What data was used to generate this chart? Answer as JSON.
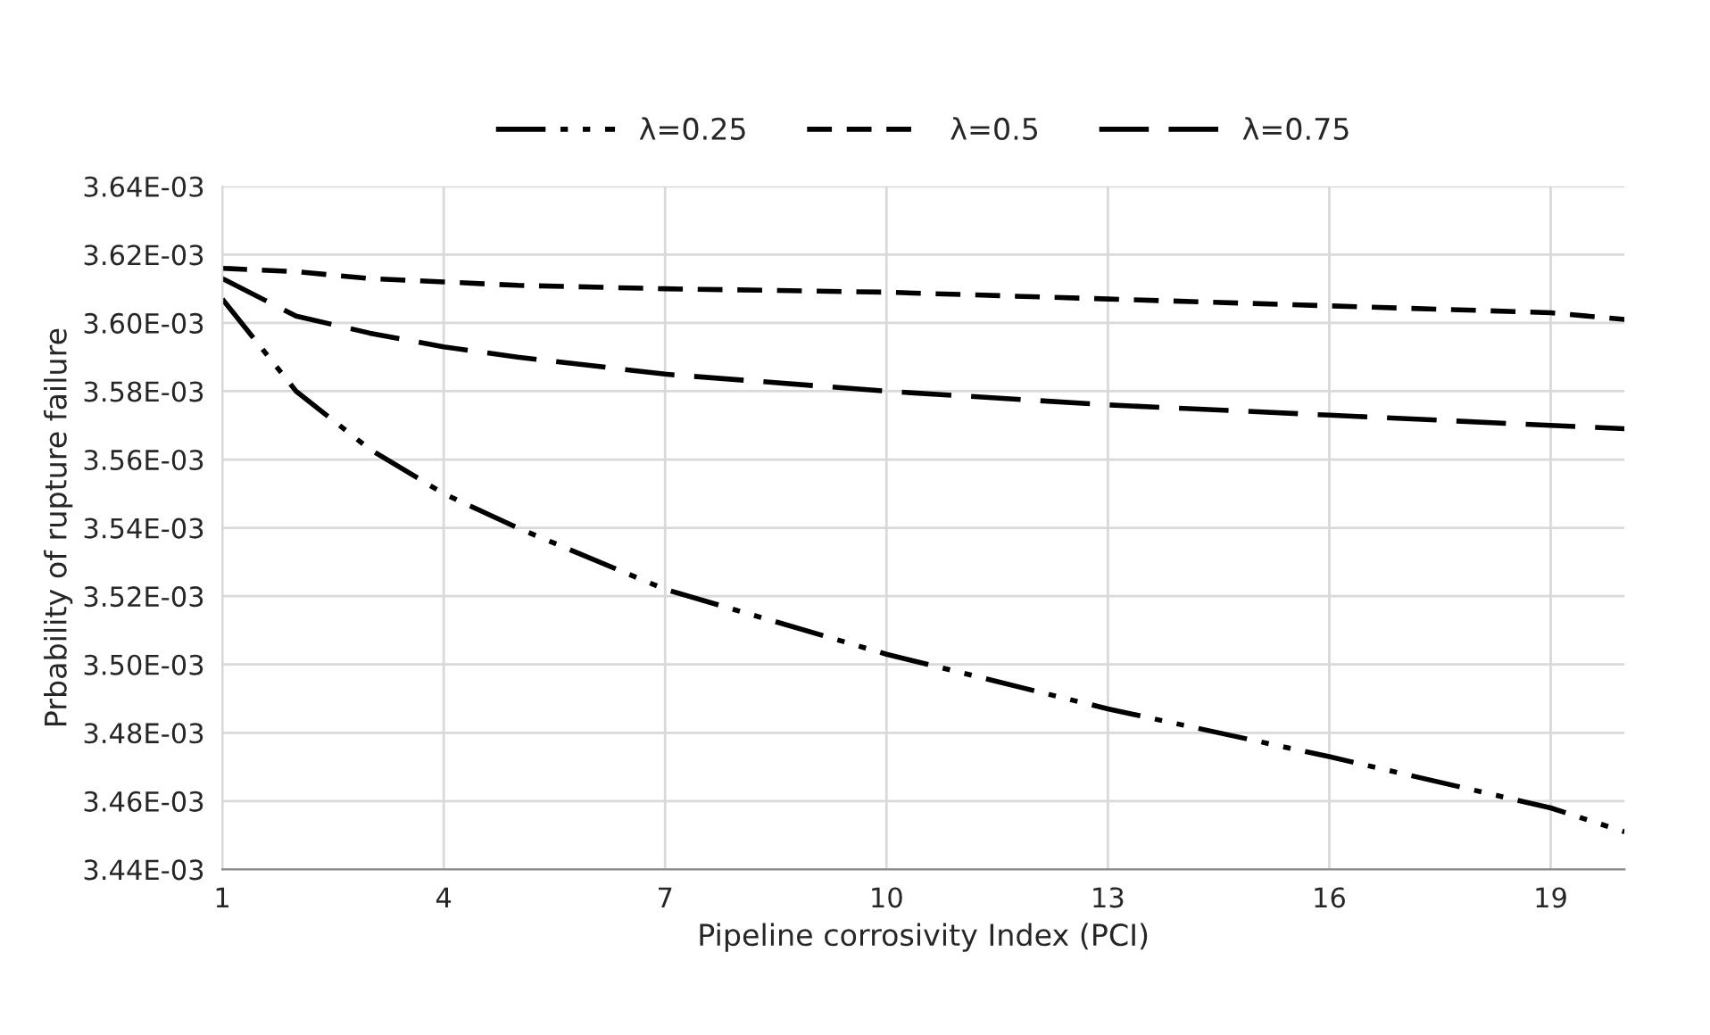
{
  "chart_data": {
    "type": "line",
    "xlabel": "Pipeline corrosivity Index (PCI)",
    "ylabel": "Prbability of rupture failure",
    "xlim": [
      1,
      20
    ],
    "xticks": [
      1,
      4,
      7,
      10,
      13,
      16,
      19
    ],
    "ylim": [
      0.00344,
      0.00364
    ],
    "yticks": [
      {
        "value": 0.00344,
        "label": "3.44E-03"
      },
      {
        "value": 0.00346,
        "label": "3.46E-03"
      },
      {
        "value": 0.00348,
        "label": "3.48E-03"
      },
      {
        "value": 0.0035,
        "label": "3.50E-03"
      },
      {
        "value": 0.00352,
        "label": "3.52E-03"
      },
      {
        "value": 0.00354,
        "label": "3.54E-03"
      },
      {
        "value": 0.00356,
        "label": "3.56E-03"
      },
      {
        "value": 0.00358,
        "label": "3.58E-03"
      },
      {
        "value": 0.0036,
        "label": "3.60E-03"
      },
      {
        "value": 0.00362,
        "label": "3.62E-03"
      },
      {
        "value": 0.00364,
        "label": "3.64E-03"
      }
    ],
    "grid": true,
    "legend": "top",
    "marker": "none",
    "x": [
      1,
      2,
      3,
      4,
      5,
      7,
      10,
      13,
      16,
      19,
      20
    ],
    "series": [
      {
        "name": "λ=0.25",
        "color": "#000000",
        "line_style": "dashdotdot",
        "values": [
          0.003607,
          0.00358,
          0.003563,
          0.00355,
          0.00354,
          0.003522,
          0.003503,
          0.003487,
          0.003473,
          0.003458,
          0.003451
        ]
      },
      {
        "name": "λ=0.5",
        "color": "#000000",
        "line_style": "dashed",
        "values": [
          0.003616,
          0.003615,
          0.003613,
          0.003612,
          0.003611,
          0.00361,
          0.003609,
          0.003607,
          0.003605,
          0.003603,
          0.003601
        ]
      },
      {
        "name": "λ=0.75",
        "color": "#000000",
        "line_style": "longdashed",
        "values": [
          0.003613,
          0.003602,
          0.003597,
          0.003593,
          0.00359,
          0.003585,
          0.00358,
          0.003576,
          0.003573,
          0.00357,
          0.003569
        ]
      }
    ]
  }
}
